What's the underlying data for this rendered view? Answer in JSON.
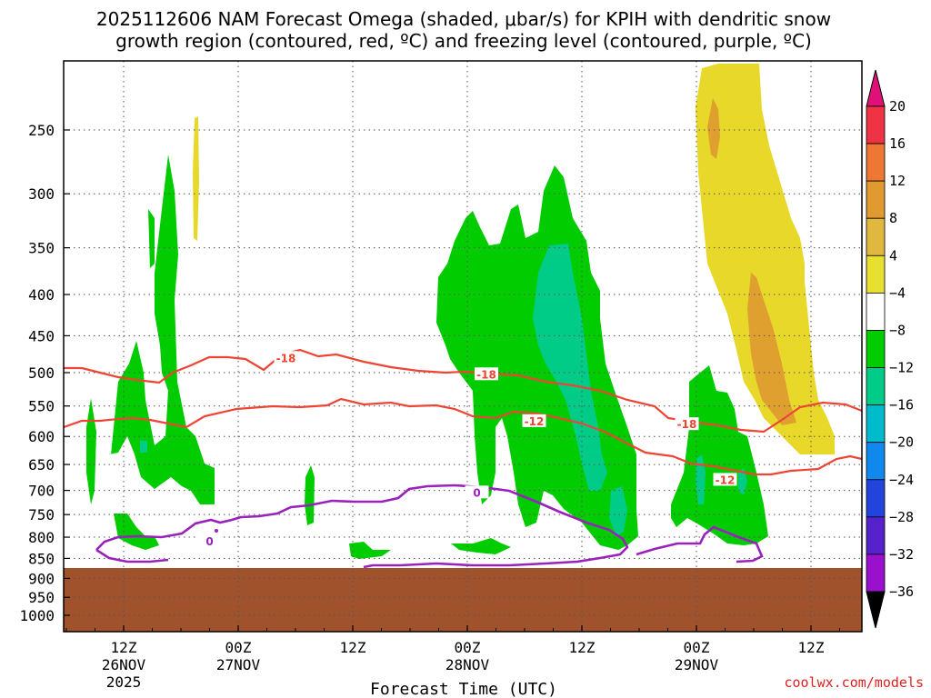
{
  "chart_data": {
    "type": "heatmap",
    "title_line1": "2025112606 NAM Forecast Omega (shaded, μbar/s) for KPIH with dendritic snow",
    "title_line2": "growth region (contoured, red, ºC) and freezing level (contoured, purple, ºC)",
    "xlabel": "Forecast Time (UTC)",
    "credit": "coolwx.com/models",
    "ylabel": "",
    "y_scale": "log",
    "y_ticks": [
      250,
      300,
      350,
      400,
      450,
      500,
      550,
      600,
      650,
      700,
      750,
      800,
      850,
      900,
      950,
      1000
    ],
    "x_ticks": [
      {
        "hour": 12,
        "label1": "12Z",
        "label2": "26NOV",
        "label3": "2025"
      },
      {
        "hour": 24,
        "label1": "00Z",
        "label2": "27NOV",
        "label3": ""
      },
      {
        "hour": 36,
        "label1": "12Z",
        "label2": "",
        "label3": ""
      },
      {
        "hour": 48,
        "label1": "00Z",
        "label2": "28NOV",
        "label3": ""
      },
      {
        "hour": 60,
        "label1": "12Z",
        "label2": "",
        "label3": ""
      },
      {
        "hour": 72,
        "label1": "00Z",
        "label2": "29NOV",
        "label3": ""
      },
      {
        "hour": 84,
        "label1": "12Z",
        "label2": "",
        "label3": ""
      }
    ],
    "colorbar": {
      "labels": [
        "20",
        "16",
        "12",
        "8",
        "4",
        "−4",
        "−8",
        "−12",
        "−16",
        "−20",
        "−24",
        "−28",
        "−32",
        "−36"
      ],
      "colors": [
        "#ee3344",
        "#ee7733",
        "#e09a30",
        "#e0b840",
        "#e8e030",
        "#ffffff",
        "#00cc00",
        "#00cc88",
        "#00bbcc",
        "#1188ee",
        "#2244dd",
        "#5522cc",
        "#9911cc",
        "#999999"
      ],
      "top_arrow_color": "#dd1177",
      "bottom_arrow_color": "#000000"
    },
    "contour_labels": [
      {
        "text": "-18",
        "color": "#ee4433",
        "hour": 29,
        "p": 480
      },
      {
        "text": "-18",
        "color": "#ee4433",
        "hour": 50,
        "p": 503
      },
      {
        "text": "-12",
        "color": "#ee4433",
        "hour": 55,
        "p": 575
      },
      {
        "text": "-18",
        "color": "#ee4433",
        "hour": 71,
        "p": 580
      },
      {
        "text": "-12",
        "color": "#ee4433",
        "hour": 75,
        "p": 680
      },
      {
        "text": "0",
        "color": "#9922bb",
        "hour": 21,
        "p": 810
      },
      {
        "text": "0",
        "color": "#9922bb",
        "hour": 49,
        "p": 705
      }
    ],
    "ground_level_hpa": 875,
    "colors": {
      "ground": "#a0522d",
      "dgz_contour": "#ee4433",
      "freezing_contour": "#9922bb"
    }
  }
}
